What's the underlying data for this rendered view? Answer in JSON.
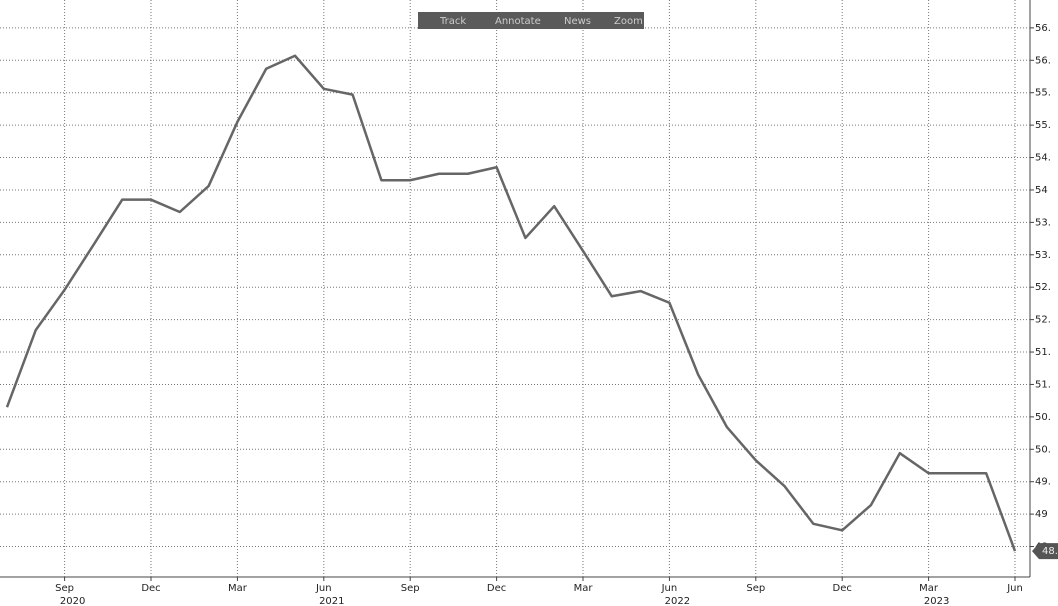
{
  "toolbar": [
    "Track",
    "Annotate",
    "News",
    "Zoom"
  ],
  "chart_data": {
    "type": "line",
    "categories": [
      null,
      null,
      "Sep",
      null,
      null,
      "Dec",
      null,
      null,
      "Mar",
      null,
      null,
      "Jun",
      null,
      null,
      "Sep",
      null,
      null,
      "Dec",
      null,
      null,
      "Mar",
      null,
      null,
      "Jun",
      null,
      null,
      "Sep",
      null,
      null,
      "Dec",
      null,
      null,
      "Mar",
      null,
      null,
      "Jun"
    ],
    "years": [
      null,
      null,
      "2020",
      null,
      null,
      null,
      null,
      null,
      null,
      null,
      null,
      "2021",
      null,
      null,
      null,
      null,
      null,
      null,
      null,
      null,
      null,
      null,
      null,
      "2022",
      null,
      null,
      null,
      null,
      null,
      null,
      null,
      null,
      "2023",
      null,
      null,
      null
    ],
    "values": [
      50.65,
      51.84,
      52.46,
      53.15,
      53.85,
      53.85,
      53.66,
      54.06,
      55.05,
      55.87,
      56.07,
      55.56,
      55.47,
      54.15,
      54.15,
      54.25,
      54.25,
      54.35,
      53.26,
      53.75,
      53.06,
      52.36,
      52.44,
      52.26,
      51.15,
      50.34,
      49.83,
      49.43,
      48.85,
      48.75,
      49.14,
      49.94,
      49.63,
      49.63,
      49.63,
      48.43
    ],
    "color": "#666666",
    "last_value_label": "48.",
    "ylim": [
      48.03,
      56.93
    ],
    "yticks": [
      {
        "value": 48.5,
        "label": "48."
      },
      49,
      {
        "value": 49.5,
        "label": "49."
      },
      {
        "value": 50,
        "label": "50."
      },
      {
        "value": 50.5,
        "label": "50."
      },
      {
        "value": 51,
        "label": "51."
      },
      {
        "value": 51.5,
        "label": "51."
      },
      {
        "value": 52,
        "label": "52."
      },
      {
        "value": 52.5,
        "label": "52."
      },
      {
        "value": 53,
        "label": "53."
      },
      {
        "value": 53.5,
        "label": "53."
      },
      54,
      {
        "value": 54.5,
        "label": "54."
      },
      {
        "value": 55,
        "label": "55."
      },
      {
        "value": 55.5,
        "label": "55."
      },
      {
        "value": 56,
        "label": "56."
      },
      {
        "value": 56.5,
        "label": "56."
      }
    ],
    "grid": true
  }
}
